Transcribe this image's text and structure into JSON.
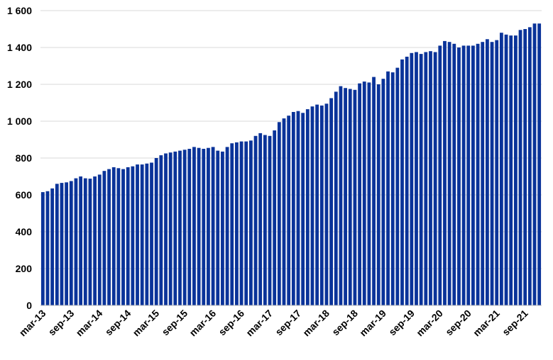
{
  "chart_data": {
    "type": "bar",
    "title": "",
    "xlabel": "",
    "ylabel": "",
    "ylim": [
      0,
      1600
    ],
    "yticks": [
      "0",
      "200",
      "400",
      "600",
      "800",
      "1 000",
      "1 200",
      "1 400",
      "1 600"
    ],
    "grid": true,
    "legend": "none",
    "bar_color": "#0a3399",
    "xtick_labels": [
      "mar-13",
      "sep-13",
      "mar-14",
      "sep-14",
      "mar-15",
      "sep-15",
      "mar-16",
      "sep-16",
      "mar-17",
      "sep-17",
      "mar-18",
      "sep-18",
      "mar-19",
      "sep-19",
      "mar-20",
      "sep-20",
      "mar-21",
      "sep-21"
    ],
    "start_month": "mar-13",
    "series": [
      {
        "values": [
          615,
          620,
          635,
          660,
          665,
          668,
          675,
          690,
          700,
          690,
          688,
          700,
          710,
          730,
          740,
          750,
          745,
          740,
          750,
          755,
          765,
          765,
          770,
          775,
          800,
          815,
          825,
          830,
          835,
          840,
          845,
          850,
          860,
          855,
          850,
          855,
          860,
          840,
          835,
          860,
          880,
          885,
          890,
          890,
          895,
          920,
          935,
          925,
          920,
          950,
          995,
          1015,
          1030,
          1050,
          1055,
          1045,
          1065,
          1080,
          1090,
          1085,
          1095,
          1125,
          1160,
          1190,
          1180,
          1175,
          1170,
          1205,
          1215,
          1210,
          1240,
          1200,
          1230,
          1270,
          1265,
          1290,
          1335,
          1350,
          1370,
          1375,
          1365,
          1375,
          1380,
          1375,
          1410,
          1435,
          1430,
          1420,
          1400,
          1410,
          1410,
          1410,
          1420,
          1430,
          1445,
          1430,
          1440,
          1480,
          1470,
          1465,
          1465,
          1495,
          1500,
          1510,
          1530,
          1530
        ]
      }
    ]
  }
}
